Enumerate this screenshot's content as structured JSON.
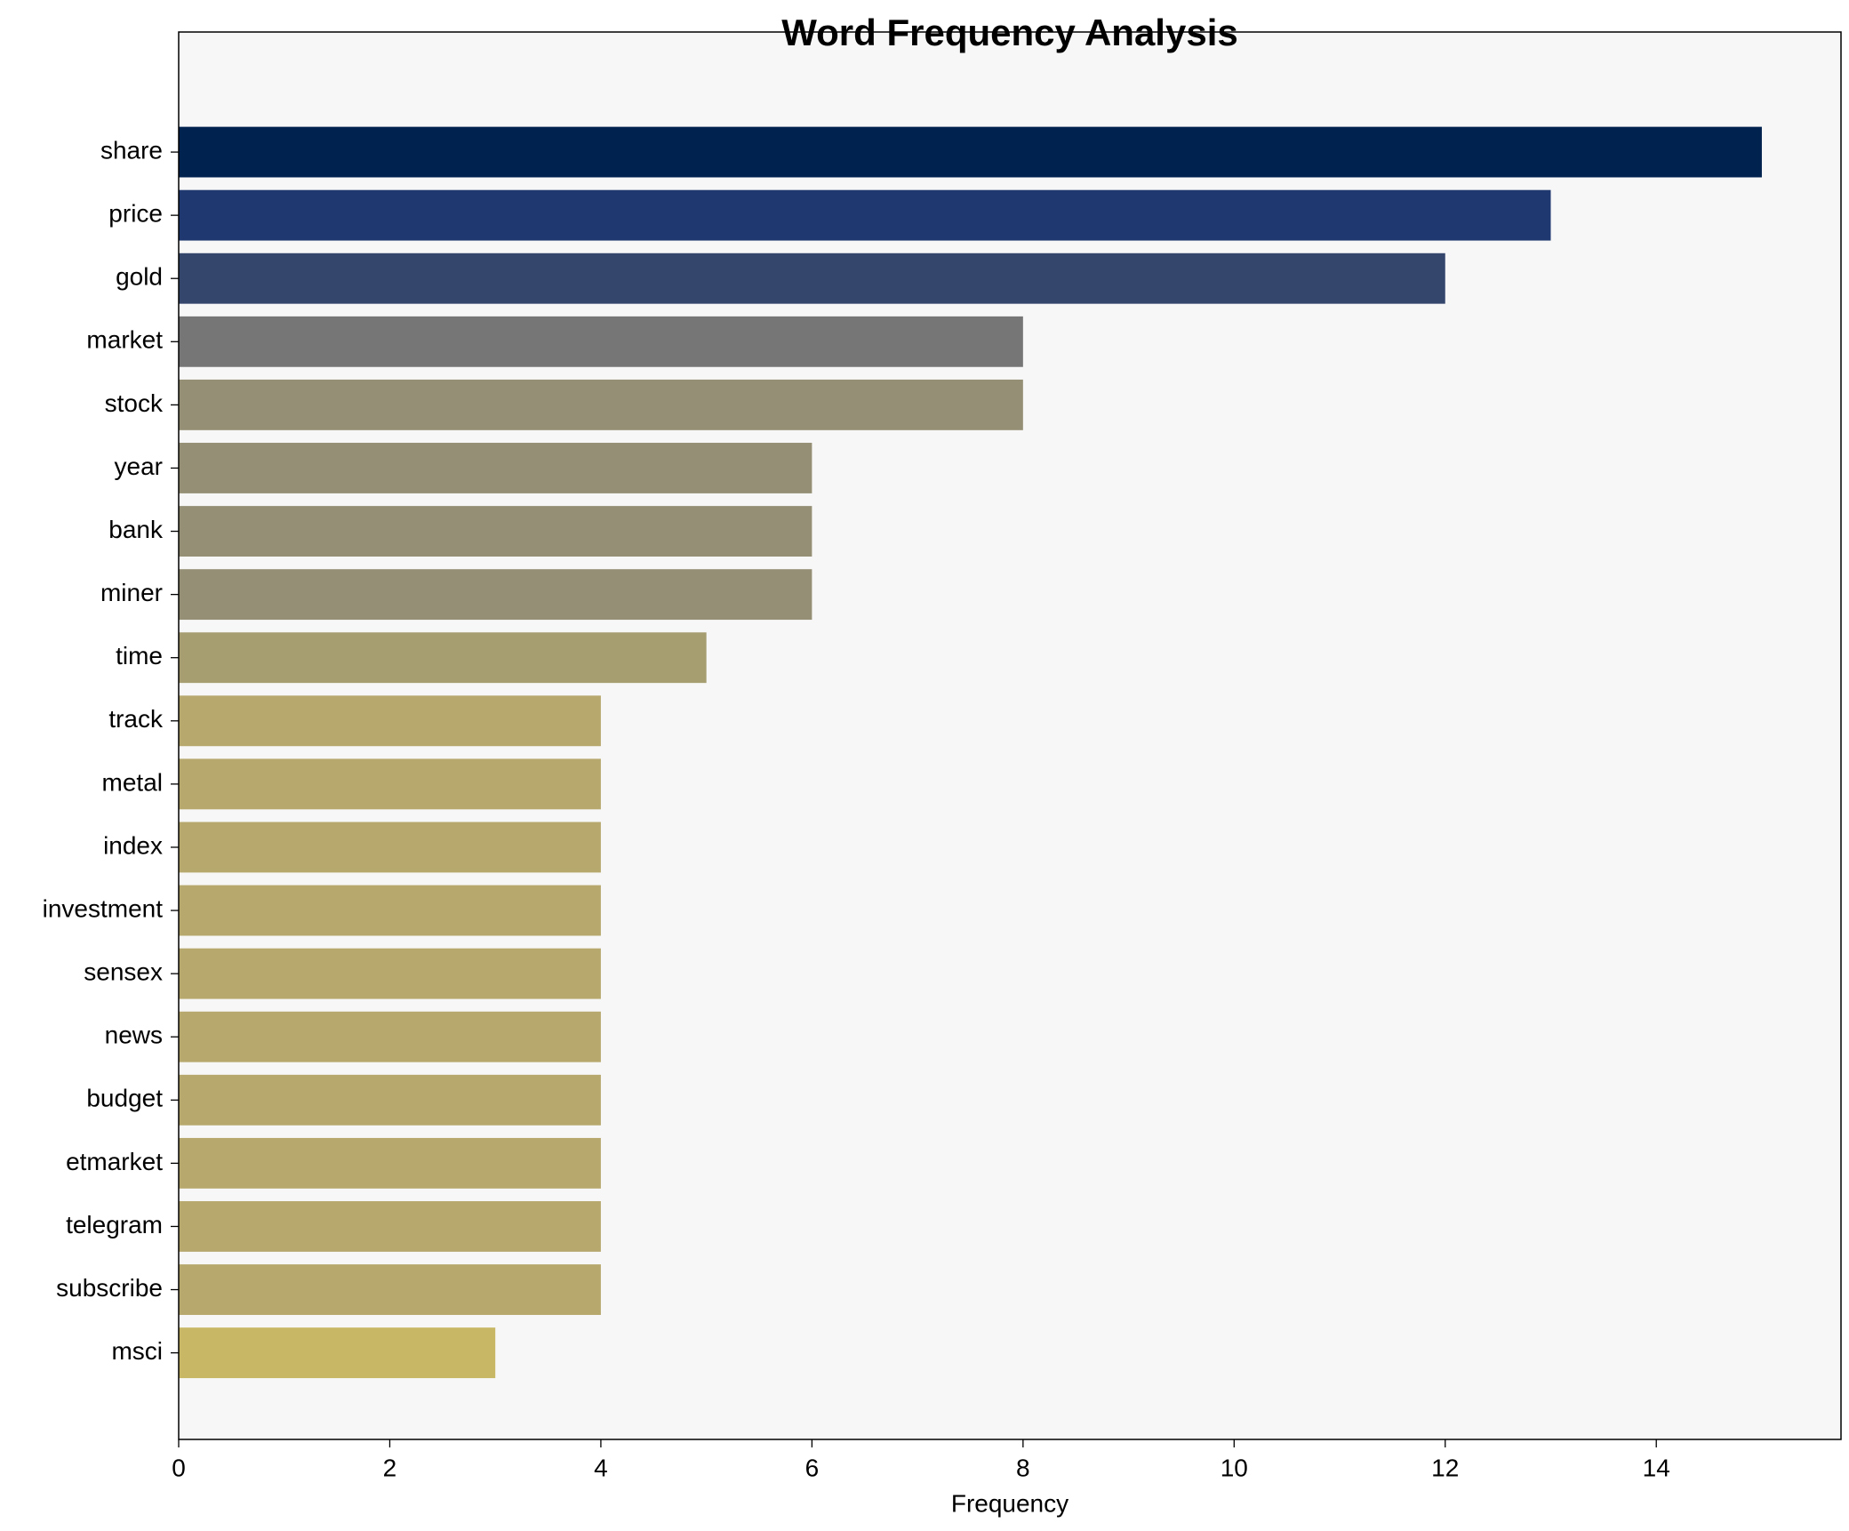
{
  "chart_data": {
    "type": "barh",
    "title": "Word Frequency Analysis",
    "x_label": "Frequency",
    "categories": [
      "share",
      "price",
      "gold",
      "market",
      "stock",
      "year",
      "bank",
      "miner",
      "time",
      "track",
      "metal",
      "index",
      "investment",
      "sensex",
      "news",
      "budget",
      "etmarket",
      "telegram",
      "subscribe",
      "msci"
    ],
    "values": [
      15,
      13,
      12,
      8,
      8,
      6,
      6,
      6,
      5,
      4,
      4,
      4,
      4,
      4,
      4,
      4,
      4,
      4,
      4,
      3
    ],
    "colors": [
      "#00224e",
      "#1f386f",
      "#35466d",
      "#767676",
      "#958f75",
      "#958f75",
      "#958f75",
      "#958f75",
      "#a69d70",
      "#b7a86d",
      "#b7a86d",
      "#b7a86d",
      "#b7a86d",
      "#b7a86d",
      "#b7a86d",
      "#b7a86d",
      "#b7a86d",
      "#b7a86d",
      "#b7a86d",
      "#c8b865"
    ],
    "xlim": [
      0,
      15.75
    ],
    "xticks": [
      0,
      2,
      4,
      6,
      8,
      10,
      12,
      14
    ],
    "grid": false
  }
}
